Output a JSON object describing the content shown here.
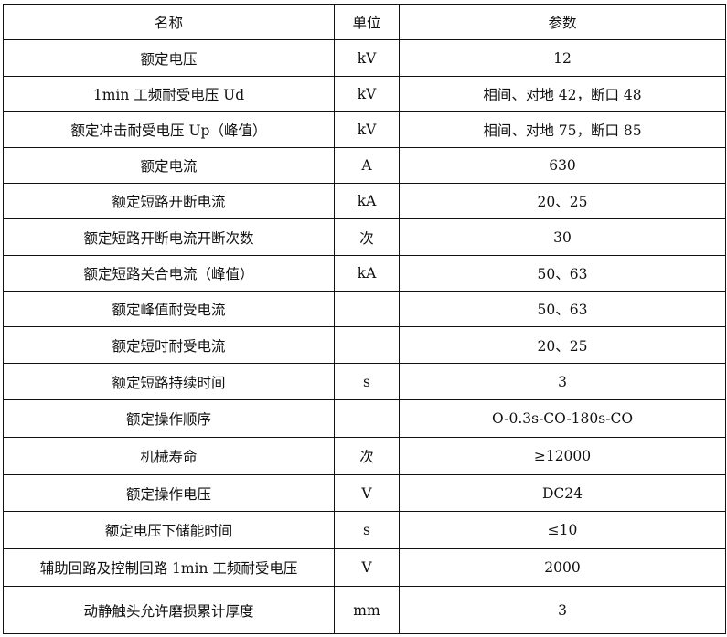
{
  "table": {
    "headers": [
      "名称",
      "单位",
      "参数"
    ],
    "rows": [
      {
        "name": "额定电压",
        "unit": "kV",
        "value": "12"
      },
      {
        "name": "1min 工频耐受电压 Ud",
        "unit": "kV",
        "value": "相间、对地 42，断口 48"
      },
      {
        "name": "额定冲击耐受电压 Up（峰值）",
        "unit": "kV",
        "value": "相间、对地 75，断口 85"
      },
      {
        "name": "额定电流",
        "unit": "A",
        "value": "630"
      },
      {
        "name": "额定短路开断电流",
        "unit": "kA",
        "value": "20、25"
      },
      {
        "name": "额定短路开断电流开断次数",
        "unit": "次",
        "value": "30"
      },
      {
        "name": "额定短路关合电流（峰值）",
        "unit": "kA",
        "value": "50、63"
      },
      {
        "name": "额定峰值耐受电流",
        "unit": "",
        "value": "50、63"
      },
      {
        "name": "额定短时耐受电流",
        "unit": "",
        "value": "20、25"
      },
      {
        "name": "额定短路持续时间",
        "unit": "s",
        "value": "3"
      },
      {
        "name": "额定操作顺序",
        "unit": "",
        "value": "O-0.3s-CO-180s-CO"
      },
      {
        "name": "机械寿命",
        "unit": "次",
        "value": "≥12000"
      },
      {
        "name": "额定操作电压",
        "unit": "V",
        "value": "DC24"
      },
      {
        "name": "额定电压下储能时间",
        "unit": "s",
        "value": "≤10"
      },
      {
        "name": "辅助回路及控制回路 1min 工频耐受电压",
        "unit": "V",
        "value": "2000"
      },
      {
        "name": "动静触头允许磨损累计厚度",
        "unit": "mm",
        "value": "3"
      }
    ]
  }
}
